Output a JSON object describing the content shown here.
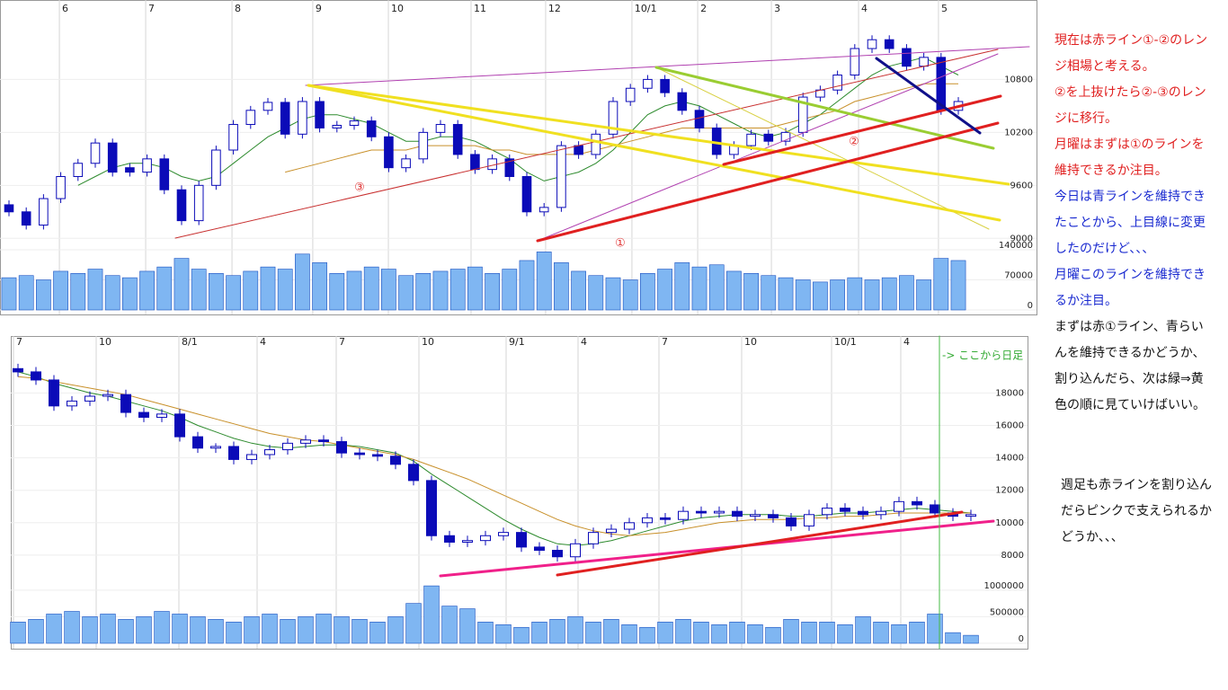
{
  "chart_data": [
    {
      "type": "candlestick",
      "color": "#0b0bb8",
      "xlim": [
        -0.52,
        59.53
      ],
      "xticks": [
        {
          "value": 2.92,
          "label": "6"
        },
        {
          "value": 7.92,
          "label": "7"
        },
        {
          "value": 12.92,
          "label": "8"
        },
        {
          "value": 17.6,
          "label": "9"
        },
        {
          "value": 21.98,
          "label": "10"
        },
        {
          "value": 26.77,
          "label": "11"
        },
        {
          "value": 31.09,
          "label": "12"
        },
        {
          "value": 36.09,
          "label": "10/1"
        },
        {
          "value": 39.9,
          "label": "2"
        },
        {
          "value": 44.17,
          "label": "3"
        },
        {
          "value": 49.22,
          "label": "4"
        },
        {
          "value": 53.85,
          "label": "5"
        }
      ],
      "ylim": [
        8850,
        11700
      ],
      "yticks": [
        9000,
        9600,
        10200,
        10800
      ],
      "open": [
        9380,
        9300,
        9150,
        9450,
        9700,
        9850,
        10080,
        9800,
        9750,
        9900,
        9550,
        9200,
        9600,
        10000,
        10290,
        10450,
        10540,
        10180,
        10550,
        10250,
        10280,
        10330,
        10150,
        9800,
        9900,
        10200,
        10290,
        9950,
        9780,
        9900,
        9700,
        9300,
        9350,
        10050,
        9950,
        10180,
        10550,
        10700,
        10800,
        10650,
        10450,
        10250,
        9950,
        10050,
        10180,
        10100,
        10200,
        10600,
        10680,
        10850,
        11150,
        11250,
        11150,
        10950,
        11050,
        10450
      ],
      "high": [
        9430,
        9350,
        9500,
        9750,
        9900,
        10130,
        10130,
        9850,
        9950,
        9950,
        9600,
        9650,
        10050,
        10340,
        10500,
        10590,
        10590,
        10600,
        10600,
        10330,
        10380,
        10380,
        10200,
        9950,
        10250,
        10340,
        10340,
        10000,
        9950,
        9950,
        9750,
        9400,
        10100,
        10100,
        10230,
        10600,
        10750,
        10850,
        10850,
        10700,
        10500,
        10300,
        10100,
        10230,
        10230,
        10250,
        10650,
        10730,
        10900,
        11200,
        11300,
        11300,
        11200,
        11100,
        11100,
        10600
      ],
      "low": [
        9250,
        9100,
        9100,
        9400,
        9650,
        9800,
        9700,
        9700,
        9700,
        9500,
        9150,
        9150,
        9550,
        9950,
        10240,
        10400,
        10130,
        10130,
        10200,
        10200,
        10230,
        10100,
        9750,
        9750,
        9850,
        10150,
        9900,
        9730,
        9730,
        9650,
        9250,
        9250,
        9300,
        9900,
        9900,
        10130,
        10500,
        10650,
        10600,
        10400,
        10200,
        9900,
        9900,
        10000,
        10050,
        10050,
        10150,
        10550,
        10630,
        10800,
        11100,
        11100,
        10900,
        10900,
        10400,
        10400
      ],
      "close": [
        9300,
        9150,
        9450,
        9700,
        9850,
        10080,
        9750,
        9750,
        9900,
        9550,
        9200,
        9600,
        10000,
        10290,
        10450,
        10540,
        10180,
        10550,
        10250,
        10280,
        10330,
        10150,
        9800,
        9900,
        10200,
        10290,
        9950,
        9780,
        9900,
        9700,
        9300,
        9350,
        10050,
        9950,
        10180,
        10550,
        10700,
        10800,
        10650,
        10450,
        10250,
        9950,
        10050,
        10180,
        10100,
        10200,
        10600,
        10680,
        10850,
        11150,
        11250,
        11150,
        10950,
        11050,
        10450,
        10550
      ],
      "ma": [
        {
          "color": "#2e8b2e",
          "values": [
            null,
            null,
            null,
            null,
            9600,
            9700,
            9800,
            9850,
            9850,
            9800,
            9700,
            9650,
            9700,
            9850,
            10000,
            10150,
            10250,
            10350,
            10400,
            10400,
            10350,
            10300,
            10200,
            10100,
            10100,
            10150,
            10150,
            10100,
            10000,
            9900,
            9750,
            9650,
            9700,
            9750,
            9850,
            10000,
            10200,
            10400,
            10500,
            10550,
            10500,
            10400,
            10300,
            10200,
            10150,
            10200,
            10300,
            10400,
            10550,
            10700,
            10850,
            10950,
            11000,
            11050,
            10950,
            10850
          ]
        },
        {
          "color": "#c8902a",
          "values": [
            null,
            null,
            null,
            null,
            null,
            null,
            null,
            null,
            null,
            null,
            null,
            null,
            null,
            null,
            null,
            null,
            9750,
            9800,
            9850,
            9900,
            9950,
            10000,
            10000,
            10000,
            10050,
            10050,
            10050,
            10050,
            10000,
            10000,
            9950,
            9950,
            9950,
            9950,
            10000,
            10050,
            10100,
            10150,
            10200,
            10250,
            10250,
            10250,
            10250,
            10250,
            10250,
            10300,
            10350,
            10400,
            10450,
            10550,
            10600,
            10650,
            10700,
            10750,
            10750,
            10750
          ]
        }
      ],
      "volume": {
        "color": "#7fb6f2",
        "ylim": [
          0,
          140000
        ],
        "yticks": [
          0,
          70000,
          140000
        ],
        "values": [
          75000,
          80000,
          70000,
          90000,
          85000,
          95000,
          80000,
          75000,
          90000,
          100000,
          120000,
          95000,
          85000,
          80000,
          90000,
          100000,
          95000,
          130000,
          110000,
          85000,
          90000,
          100000,
          95000,
          80000,
          85000,
          90000,
          95000,
          100000,
          85000,
          95000,
          115000,
          135000,
          110000,
          90000,
          80000,
          75000,
          70000,
          85000,
          95000,
          110000,
          100000,
          105000,
          90000,
          85000,
          80000,
          75000,
          70000,
          65000,
          70000,
          75000,
          70000,
          75000,
          80000,
          70000,
          120000,
          115000
        ]
      },
      "annotations": [
        "③",
        "①",
        "②"
      ]
    },
    {
      "type": "candlestick",
      "color": "#0b0bb8",
      "xlim": [
        -0.4,
        56.15
      ],
      "xticks": [
        {
          "value": -0.25,
          "label": "7"
        },
        {
          "value": 4.35,
          "label": "10"
        },
        {
          "value": 8.95,
          "label": "8/1"
        },
        {
          "value": 13.3,
          "label": "4"
        },
        {
          "value": 17.7,
          "label": "7"
        },
        {
          "value": 22.3,
          "label": "10"
        },
        {
          "value": 27.15,
          "label": "9/1"
        },
        {
          "value": 31.15,
          "label": "4"
        },
        {
          "value": 35.65,
          "label": "7"
        },
        {
          "value": 40.25,
          "label": "10"
        },
        {
          "value": 45.25,
          "label": "10/1"
        },
        {
          "value": 49.1,
          "label": "4"
        }
      ],
      "ylim": [
        6500,
        21400
      ],
      "yticks": [
        8000,
        10000,
        12000,
        14000,
        16000,
        18000
      ],
      "open": [
        19500,
        19300,
        18800,
        17200,
        17500,
        17800,
        17900,
        16800,
        16500,
        16700,
        15300,
        14600,
        14700,
        13900,
        14200,
        14500,
        14900,
        15100,
        15000,
        14300,
        14200,
        14100,
        13600,
        12600,
        9200,
        8800,
        8900,
        9200,
        9400,
        8500,
        8300,
        7900,
        8700,
        9400,
        9600,
        10000,
        10300,
        10200,
        10700,
        10600,
        10700,
        10400,
        10500,
        10300,
        9800,
        10500,
        10900,
        10700,
        10500,
        10700,
        11300,
        11100,
        10600,
        10400
      ],
      "high": [
        19800,
        19600,
        19100,
        17800,
        18100,
        18200,
        18200,
        17100,
        17000,
        17000,
        15600,
        14900,
        15000,
        14500,
        14800,
        15200,
        15400,
        15400,
        15300,
        14600,
        14500,
        14400,
        13900,
        12900,
        9500,
        9200,
        9500,
        9700,
        9700,
        8800,
        8600,
        9000,
        9700,
        9900,
        10300,
        10600,
        10600,
        11000,
        11000,
        11000,
        11000,
        10800,
        10800,
        10600,
        10800,
        11200,
        11200,
        11000,
        11000,
        11600,
        11600,
        11400,
        10900,
        10800
      ],
      "low": [
        19000,
        18500,
        16900,
        16900,
        17200,
        17500,
        16500,
        16200,
        16200,
        15000,
        14300,
        14300,
        13600,
        13600,
        13900,
        14200,
        14600,
        14700,
        14000,
        13900,
        13800,
        13300,
        12300,
        8900,
        8500,
        8500,
        8600,
        8900,
        8200,
        8000,
        7600,
        7600,
        8400,
        9100,
        9300,
        9700,
        9900,
        9900,
        10300,
        10300,
        10100,
        10100,
        10000,
        9500,
        9500,
        10200,
        10400,
        10200,
        10200,
        10400,
        10800,
        10300,
        10100,
        10100
      ],
      "close": [
        19300,
        18800,
        17200,
        17500,
        17800,
        17900,
        16800,
        16500,
        16700,
        15300,
        14600,
        14700,
        13900,
        14200,
        14500,
        14900,
        15100,
        15000,
        14300,
        14200,
        14100,
        13600,
        12600,
        9200,
        8800,
        8900,
        9200,
        9400,
        8500,
        8300,
        7900,
        8700,
        9400,
        9600,
        10000,
        10300,
        10200,
        10700,
        10600,
        10700,
        10400,
        10500,
        10300,
        9800,
        10500,
        10900,
        10700,
        10500,
        10700,
        11300,
        11100,
        10600,
        10400,
        10500
      ],
      "ma": [
        {
          "color": "#2e8b2e",
          "values": [
            19300,
            19000,
            18600,
            18300,
            18000,
            17800,
            17500,
            17200,
            16900,
            16500,
            16000,
            15600,
            15200,
            14900,
            14700,
            14600,
            14700,
            14800,
            14800,
            14700,
            14500,
            14300,
            13800,
            13000,
            12300,
            11600,
            10900,
            10200,
            9600,
            9100,
            8700,
            8600,
            8700,
            8900,
            9200,
            9500,
            9800,
            10100,
            10300,
            10400,
            10500,
            10500,
            10500,
            10400,
            10400,
            10500,
            10600,
            10600,
            10700,
            10800,
            10900,
            10800,
            10700,
            10600
          ]
        },
        {
          "color": "#c8902a",
          "values": [
            19000,
            18900,
            18700,
            18500,
            18300,
            18100,
            17900,
            17600,
            17300,
            17000,
            16700,
            16400,
            16100,
            15800,
            15500,
            15300,
            15100,
            15000,
            14800,
            14600,
            14400,
            14200,
            13900,
            13500,
            13100,
            12700,
            12200,
            11700,
            11200,
            10700,
            10200,
            9800,
            9500,
            9300,
            9200,
            9300,
            9400,
            9600,
            9800,
            10000,
            10100,
            10200,
            10200,
            10200,
            10300,
            10300,
            10400,
            10400,
            10500,
            10600,
            10600,
            10600,
            10600,
            10600
          ]
        }
      ],
      "volume": {
        "color": "#7fb6f2",
        "ylim": [
          0,
          1200000
        ],
        "yticks": [
          0,
          500000,
          1000000
        ],
        "values": [
          400000,
          450000,
          550000,
          600000,
          500000,
          550000,
          450000,
          500000,
          600000,
          550000,
          500000,
          450000,
          400000,
          500000,
          550000,
          450000,
          500000,
          550000,
          500000,
          450000,
          400000,
          500000,
          750000,
          1080000,
          700000,
          650000,
          400000,
          350000,
          300000,
          400000,
          450000,
          500000,
          400000,
          450000,
          350000,
          300000,
          400000,
          450000,
          400000,
          350000,
          400000,
          350000,
          300000,
          450000,
          400000,
          400000,
          350000,
          500000,
          400000,
          350000,
          400000,
          550000,
          200000,
          150000
        ]
      },
      "annotations": [
        "-> ここから日足"
      ]
    }
  ],
  "notes": [
    {
      "color": "#e02020",
      "lines": [
        "現在は赤ライン①-②のレン",
        "ジ相場と考える。",
        "②を上抜けたら②-③のレン",
        "ジに移行。",
        "月曜はまずは①のラインを",
        "維持できるか注目。"
      ]
    },
    {
      "color": "#1a2ad0",
      "lines": [
        "今日は青ラインを維持でき",
        "たことから、上目線に変更",
        "したのだけど、、、",
        "月曜このラインを維持でき",
        "るか注目。"
      ]
    },
    {
      "color": "#111111",
      "lines": [
        "まずは赤①ライン、青らい",
        "んを維持できるかどうか、",
        "割り込んだら、次は緑⇒黄",
        "色の順に見ていけばいい。"
      ]
    },
    {
      "color": "#111111",
      "lines": [
        "週足も赤ラインを割り込ん",
        "だらピンクで支えられるか",
        "どうか、、、"
      ]
    }
  ]
}
